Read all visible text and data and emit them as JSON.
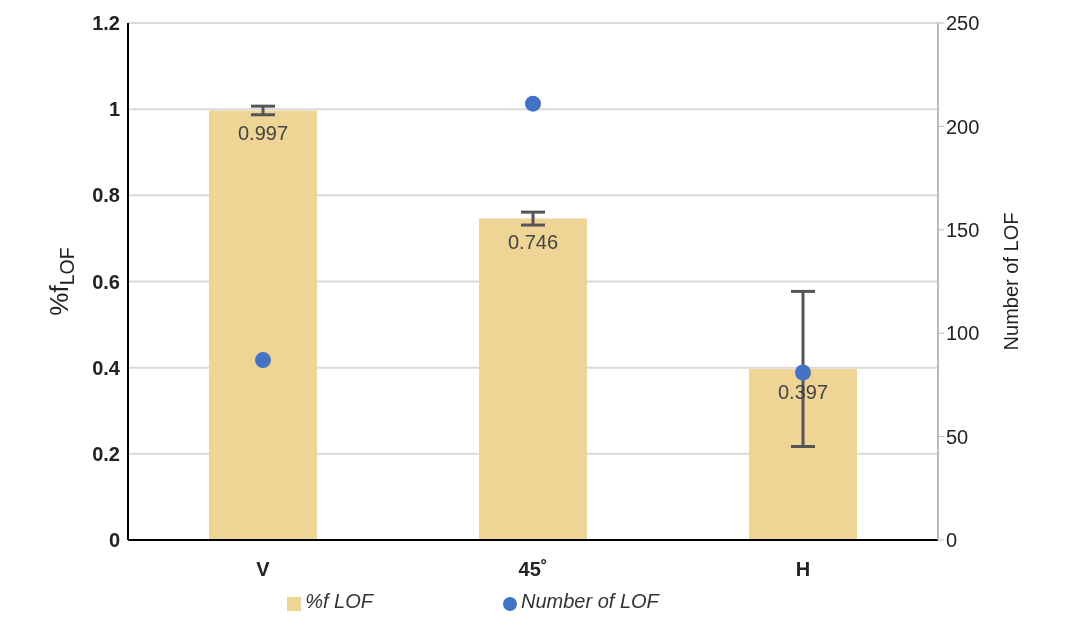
{
  "chart_data": {
    "type": "bar",
    "categories": [
      "V",
      "45˚",
      "H"
    ],
    "ylabel": "%f$_{LOF}$",
    "y2label": "Number of LOF",
    "ylim": [
      0,
      1.2
    ],
    "yticks": [
      0,
      0.2,
      0.4,
      0.6,
      0.8,
      1,
      1.2
    ],
    "y2lim": [
      0,
      250
    ],
    "y2ticks": [
      0,
      50,
      100,
      150,
      200,
      250
    ],
    "grid": "y",
    "legend": "bottom",
    "series": [
      {
        "name": "%f LOF",
        "color": "#eed596",
        "values": [
          0.997,
          0.746,
          0.397
        ],
        "errors": [
          0.01,
          0.015,
          0.18
        ],
        "value_labels": [
          "0.997",
          "0.746",
          "0.397"
        ]
      },
      {
        "name": "Number of LOF",
        "type": "scatter",
        "axis": "y2",
        "color": "#4472c4",
        "values": [
          87,
          211,
          81
        ],
        "marker": "circle"
      }
    ]
  }
}
